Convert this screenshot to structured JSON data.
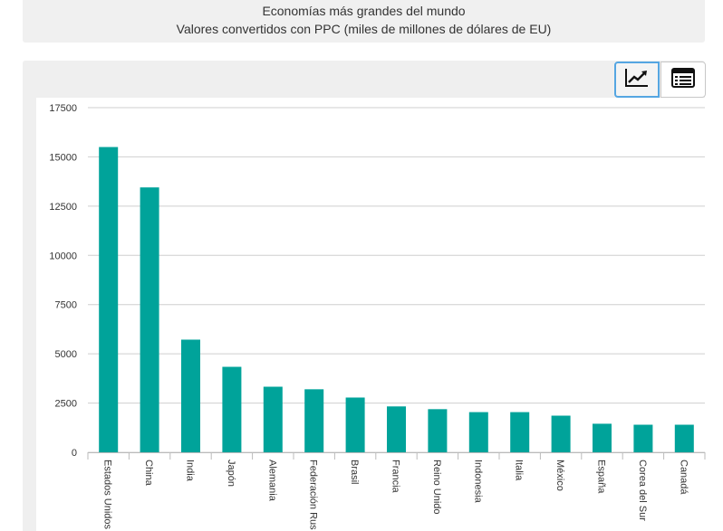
{
  "header": {
    "title": "Economías más grandes del mundo",
    "subtitle": "Valores convertidos con PPC (miles de millones de dólares de EU)"
  },
  "toolbar": {
    "chart_icon": "line-chart-icon",
    "table_icon": "table-list-icon"
  },
  "colors": {
    "bar": "#00a39a",
    "grid": "#cfcfcf",
    "panel": "#efefef",
    "active_border": "#55a6e2"
  },
  "chart_data": {
    "type": "bar",
    "title": "Economías más grandes del mundo",
    "subtitle": "Valores convertidos con PPC (miles de millones de dólares de EU)",
    "categories": [
      "Estados Unidos",
      "China",
      "India",
      "Japón",
      "Alemania",
      "Federación Rusa",
      "Brasil",
      "Francia",
      "Reino Unido",
      "Indonesia",
      "Italia",
      "México",
      "España",
      "Corea del Sur",
      "Canadá"
    ],
    "category_display": [
      "Estados Unidos",
      "China",
      "India",
      "Japón",
      "Alemania",
      "Federación Rus",
      "Brasil",
      "Francia",
      "Reino Unido",
      "Indonesia",
      "Italia",
      "México",
      "España",
      "Corea del Sur",
      "Canadá"
    ],
    "values": [
      15500,
      13450,
      5720,
      4340,
      3330,
      3200,
      2780,
      2330,
      2190,
      2040,
      2040,
      1860,
      1450,
      1400,
      1400
    ],
    "ylim": [
      0,
      17500
    ],
    "yticks": [
      0,
      2500,
      5000,
      7500,
      10000,
      12500,
      15000,
      17500
    ],
    "xlabel": "",
    "ylabel": "",
    "grid": true,
    "legend": "none"
  }
}
